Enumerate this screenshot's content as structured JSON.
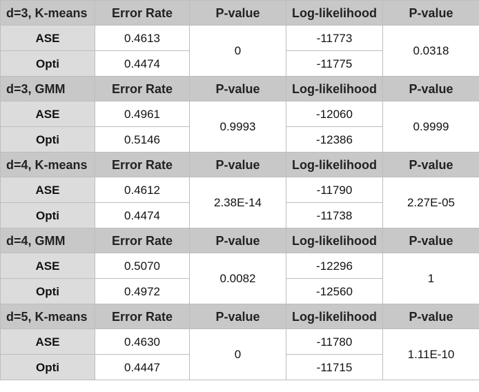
{
  "blocks": [
    {
      "headers": [
        "d=3, K-means",
        "Error Rate",
        "P-value",
        "Log-likelihood",
        "P-value"
      ],
      "rows": [
        {
          "label": "ASE",
          "error_rate": "0.4613",
          "log_likelihood": "-11773"
        },
        {
          "label": "Opti",
          "error_rate": "0.4474",
          "log_likelihood": "-11775"
        }
      ],
      "p_value_error": "0",
      "p_value_loglik": "0.0318"
    },
    {
      "headers": [
        "d=3, GMM",
        "Error Rate",
        "P-value",
        "Log-likelihood",
        "P-value"
      ],
      "rows": [
        {
          "label": "ASE",
          "error_rate": "0.4961",
          "log_likelihood": "-12060"
        },
        {
          "label": "Opti",
          "error_rate": "0.5146",
          "log_likelihood": "-12386"
        }
      ],
      "p_value_error": "0.9993",
      "p_value_loglik": "0.9999"
    },
    {
      "headers": [
        "d=4, K-means",
        "Error Rate",
        "P-value",
        "Log-likelihood",
        "P-value"
      ],
      "rows": [
        {
          "label": "ASE",
          "error_rate": "0.4612",
          "log_likelihood": "-11790"
        },
        {
          "label": "Opti",
          "error_rate": "0.4474",
          "log_likelihood": "-11738"
        }
      ],
      "p_value_error": "2.38E-14",
      "p_value_loglik": "2.27E-05"
    },
    {
      "headers": [
        "d=4, GMM",
        "Error Rate",
        "P-value",
        "Log-likelihood",
        "P-value"
      ],
      "rows": [
        {
          "label": "ASE",
          "error_rate": "0.5070",
          "log_likelihood": "-12296"
        },
        {
          "label": "Opti",
          "error_rate": "0.4972",
          "log_likelihood": "-12560"
        }
      ],
      "p_value_error": "0.0082",
      "p_value_loglik": "1"
    },
    {
      "headers": [
        "d=5, K-means",
        "Error Rate",
        "P-value",
        "Log-likelihood",
        "P-value"
      ],
      "rows": [
        {
          "label": "ASE",
          "error_rate": "0.4630",
          "log_likelihood": "-11780"
        },
        {
          "label": "Opti",
          "error_rate": "0.4447",
          "log_likelihood": "-11715"
        }
      ],
      "p_value_error": "0",
      "p_value_loglik": "1.11E-10"
    }
  ]
}
